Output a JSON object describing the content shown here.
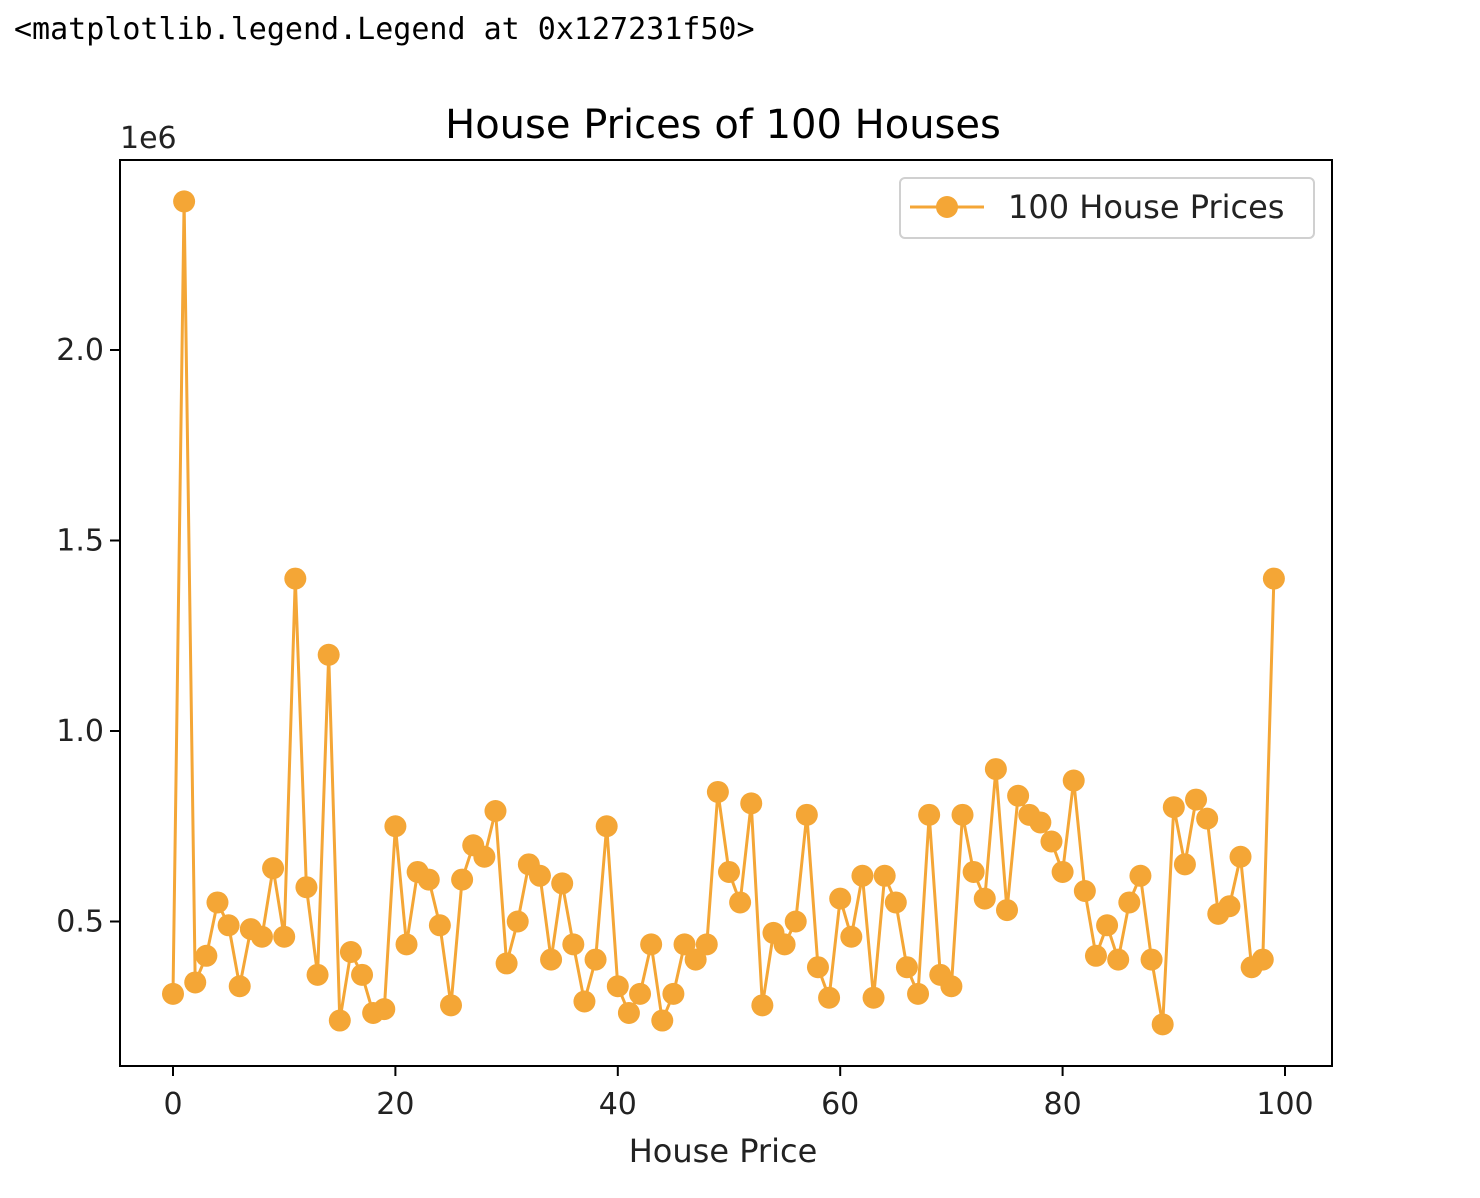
{
  "output_repr": "<matplotlib.legend.Legend at 0x127231f50>",
  "chart_data": {
    "type": "line",
    "title": "House Prices of 100 Houses",
    "xlabel": "House Price",
    "ylabel": "",
    "y_offset_text": "1e6",
    "xlim": [
      -5,
      104
    ],
    "ylim": [
      0.15,
      2.5
    ],
    "xticks": [
      "0",
      "20",
      "40",
      "60",
      "80",
      "100"
    ],
    "yticks": [
      "0.5",
      "1.0",
      "1.5",
      "2.0"
    ],
    "legend": {
      "entries": [
        "100 House Prices"
      ],
      "position": "upper right"
    },
    "grid": false,
    "color": "#f4a636",
    "marker": "o",
    "series": [
      {
        "name": "100 House Prices",
        "x": [
          0,
          1,
          2,
          3,
          4,
          5,
          6,
          7,
          8,
          9,
          10,
          11,
          12,
          13,
          14,
          15,
          16,
          17,
          18,
          19,
          20,
          21,
          22,
          23,
          24,
          25,
          26,
          27,
          28,
          29,
          30,
          31,
          32,
          33,
          34,
          35,
          36,
          37,
          38,
          39,
          40,
          41,
          42,
          43,
          44,
          45,
          46,
          47,
          48,
          49,
          50,
          51,
          52,
          53,
          54,
          55,
          56,
          57,
          58,
          59,
          60,
          61,
          62,
          63,
          64,
          65,
          66,
          67,
          68,
          69,
          70,
          71,
          72,
          73,
          74,
          75,
          76,
          77,
          78,
          79,
          80,
          81,
          82,
          83,
          84,
          85,
          86,
          87,
          88,
          89,
          90,
          91,
          92,
          93,
          94,
          95,
          96,
          97,
          98,
          99
        ],
        "values": [
          0.31,
          2.39,
          0.34,
          0.41,
          0.55,
          0.49,
          0.33,
          0.48,
          0.46,
          0.64,
          0.46,
          1.4,
          0.59,
          0.36,
          1.2,
          0.24,
          0.42,
          0.36,
          0.26,
          0.27,
          0.75,
          0.44,
          0.63,
          0.61,
          0.49,
          0.28,
          0.61,
          0.7,
          0.67,
          0.79,
          0.39,
          0.5,
          0.65,
          0.62,
          0.4,
          0.6,
          0.44,
          0.29,
          0.4,
          0.75,
          0.33,
          0.26,
          0.31,
          0.44,
          0.24,
          0.31,
          0.44,
          0.4,
          0.44,
          0.84,
          0.63,
          0.55,
          0.81,
          0.28,
          0.47,
          0.44,
          0.5,
          0.78,
          0.38,
          0.3,
          0.56,
          0.46,
          0.62,
          0.3,
          0.62,
          0.55,
          0.38,
          0.31,
          0.78,
          0.36,
          0.33,
          0.78,
          0.63,
          0.56,
          0.9,
          0.53,
          0.83,
          0.78,
          0.76,
          0.71,
          0.63,
          0.87,
          0.58,
          0.41,
          0.49,
          0.4,
          0.55,
          0.62,
          0.4,
          0.23,
          0.8,
          0.65,
          0.82,
          0.77,
          0.52,
          0.54,
          0.67,
          0.38,
          0.4,
          1.4
        ],
        "unit_scale": "1e6"
      }
    ]
  }
}
